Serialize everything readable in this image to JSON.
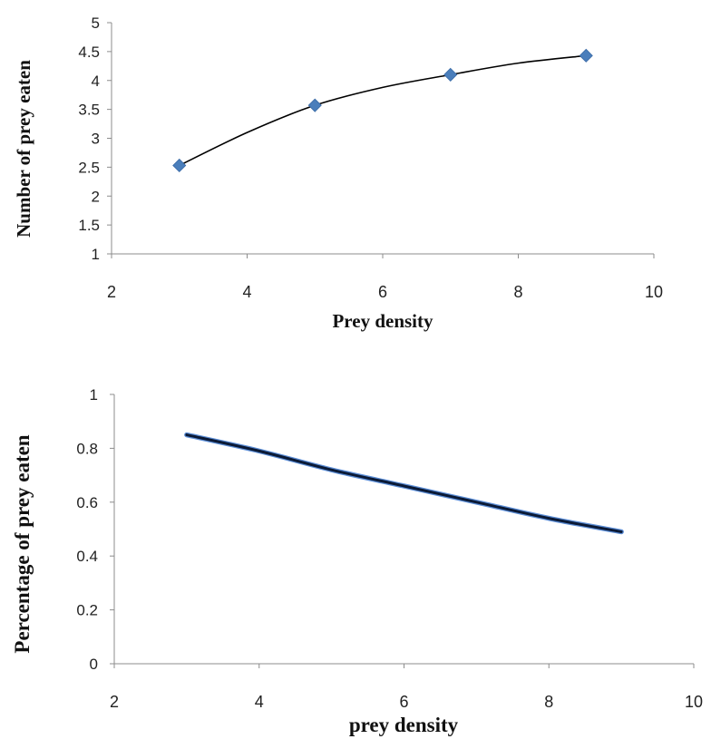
{
  "chart_data": [
    {
      "type": "scatter",
      "title": "",
      "xlabel": "Prey density",
      "ylabel": "Number of prey eaten",
      "xlim": [
        2,
        10
      ],
      "ylim": [
        1,
        5
      ],
      "x_ticks": [
        "2",
        "4",
        "6",
        "8",
        "10"
      ],
      "y_ticks": [
        "1",
        "1.5",
        "2",
        "2.5",
        "3",
        "3.5",
        "4",
        "4.5",
        "5"
      ],
      "grid": false,
      "legend": "none",
      "series": [
        {
          "marker": "diamond",
          "color": "#4a7ebb",
          "x": [
            3,
            5,
            7,
            9
          ],
          "y": [
            2.53,
            3.57,
            4.1,
            4.43
          ]
        }
      ],
      "trendline": {
        "type": "polynomial",
        "color": "#000000",
        "x": [
          3,
          4,
          5,
          6,
          7,
          8,
          9
        ],
        "y": [
          2.53,
          3.1,
          3.57,
          3.88,
          4.1,
          4.3,
          4.43
        ]
      }
    },
    {
      "type": "line",
      "title": "",
      "xlabel": "prey density",
      "ylabel": "Percentage of prey eaten",
      "xlim": [
        2,
        10
      ],
      "ylim": [
        0,
        1
      ],
      "x_ticks": [
        "2",
        "4",
        "6",
        "8",
        "10"
      ],
      "y_ticks": [
        "0",
        "0.2",
        "0.4",
        "0.6",
        "0.8",
        "1"
      ],
      "grid": false,
      "legend": "none",
      "series": [
        {
          "color": "#0b1a36",
          "x": [
            3,
            4,
            5,
            6,
            7,
            8,
            9
          ],
          "y": [
            0.85,
            0.79,
            0.72,
            0.66,
            0.6,
            0.54,
            0.49
          ]
        }
      ]
    }
  ]
}
